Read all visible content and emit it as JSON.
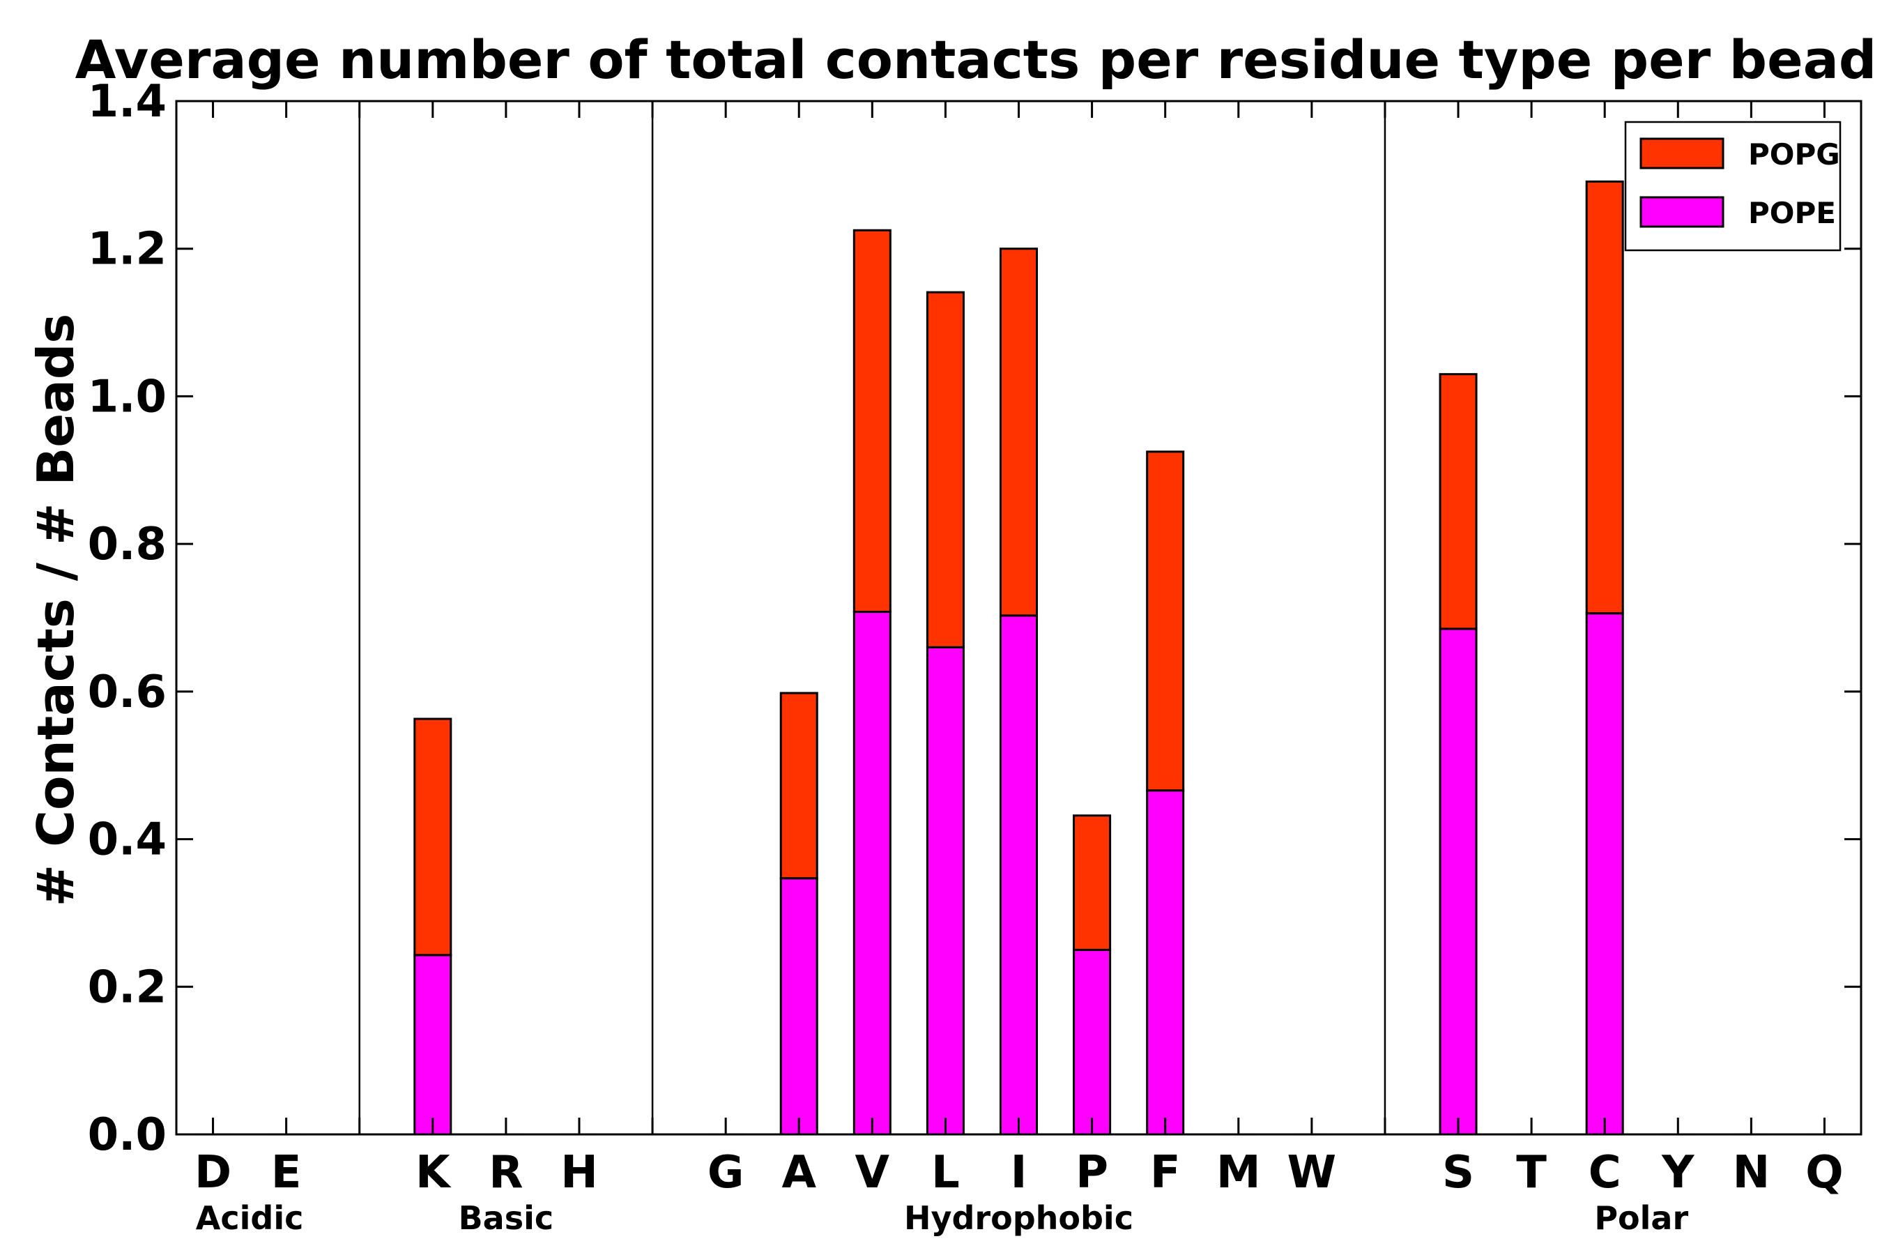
{
  "chart_data": {
    "type": "bar",
    "stacked": true,
    "title": "Average number of total contacts per residue type per bead",
    "xlabel": "",
    "ylabel": "# Contacts / # Beads",
    "ylim": [
      0,
      1.4
    ],
    "yticks": [
      "0.0",
      "0.2",
      "0.4",
      "0.6",
      "0.8",
      "1.0",
      "1.2",
      "1.4"
    ],
    "ytick_values": [
      0,
      0.2,
      0.4,
      0.6,
      0.8,
      1.0,
      1.2,
      1.4
    ],
    "slots": [
      "D",
      "E",
      "",
      "K",
      "R",
      "H",
      "",
      "G",
      "A",
      "V",
      "L",
      "I",
      "P",
      "F",
      "M",
      "W",
      "",
      "S",
      "T",
      "C",
      "Y",
      "N",
      "Q"
    ],
    "separators_after_slot": [
      2,
      6,
      16
    ],
    "groups": [
      {
        "name": "Acidic",
        "from": 0,
        "to": 1
      },
      {
        "name": "Basic",
        "from": 3,
        "to": 5
      },
      {
        "name": "Hydrophobic",
        "from": 7,
        "to": 15
      },
      {
        "name": "Polar",
        "from": 17,
        "to": 22
      }
    ],
    "series": [
      {
        "name": "POPE",
        "color": "#ff00ff",
        "values": [
          0,
          0,
          0,
          0.243,
          0,
          0,
          0,
          0,
          0.347,
          0.708,
          0.66,
          0.703,
          0.25,
          0.466,
          0,
          0,
          0,
          0.685,
          0,
          0.706,
          0,
          0,
          0
        ]
      },
      {
        "name": "POPG",
        "color": "#ff3300",
        "values": [
          0,
          0,
          0,
          0.32,
          0,
          0,
          0,
          0,
          0.251,
          0.517,
          0.481,
          0.497,
          0.182,
          0.459,
          0,
          0,
          0,
          0.345,
          0,
          0.585,
          0,
          0,
          0
        ]
      }
    ],
    "legend": {
      "position": "top-right",
      "order": [
        "POPG",
        "POPE"
      ]
    },
    "grid": false
  }
}
